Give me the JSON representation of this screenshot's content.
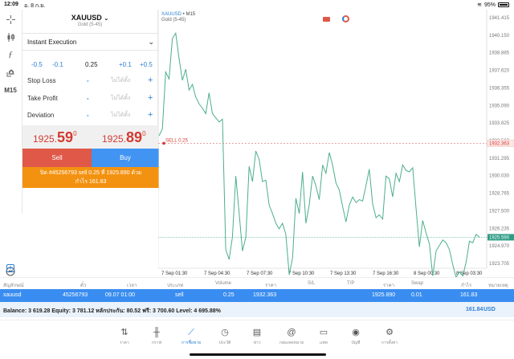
{
  "statusbar": {
    "time": "12:09",
    "date": "อ. 8 ก.ย.",
    "battery": "95%"
  },
  "toolrail": {
    "timeframe": "M15"
  },
  "order": {
    "symbol": "XAUUSD",
    "symbol_desc": "Gold (5-45)",
    "execution": "Instant Execution",
    "volume_steps": [
      "-0.5",
      "-0.1",
      "0.25",
      "+0.1",
      "+0.5"
    ],
    "fields": [
      {
        "label": "Stop Loss",
        "minus": "-",
        "value": "ไม่ได้ตั้ง",
        "plus": "+"
      },
      {
        "label": "Take Profit",
        "minus": "-",
        "value": "ไม่ได้ตั้ง",
        "plus": "+"
      },
      {
        "label": "Deviation",
        "minus": "-",
        "value": "ไม่ได้ตั้ง",
        "plus": "+"
      }
    ],
    "bid": {
      "main": "1925.",
      "big": "59",
      "sup": "0"
    },
    "ask": {
      "main": "1925.",
      "big": "89",
      "sup": "0"
    },
    "sell_label": "Sell",
    "buy_label": "Buy",
    "close_line1": "ปิด #45256793 sell 0.25 ที่ 1925.890 ด้วย",
    "close_line2": "กำไร 161.83"
  },
  "chart": {
    "symbol": "XAUUSD",
    "sep": " • ",
    "timeframe": "M15",
    "desc": "Gold (5-45)",
    "order_line_label": "SELL 0.25",
    "order_price_tag": "1932.363",
    "current_price_tag": "1925.590",
    "line_color": "#4caf8a",
    "order_color": "#d23a30"
  },
  "chart_data": {
    "type": "line",
    "title": "XAUUSD • M15",
    "subtitle": "Gold (5-45)",
    "y_ticks": [
      "1941.415",
      "1940.150",
      "1938.885",
      "1937.620",
      "1936.355",
      "1935.090",
      "1933.825",
      "1932.560",
      "1931.295",
      "1930.030",
      "1928.765",
      "1927.500",
      "1926.235",
      "1924.970",
      "1923.705"
    ],
    "x_ticks": [
      "7 Sep 01:30",
      "7 Sep 04:30",
      "7 Sep 07:30",
      "7 Sep 10:30",
      "7 Sep 13:30",
      "7 Sep 16:30",
      "8 Sep 00:30",
      "8 Sep 03:30"
    ],
    "ylim": [
      1922.9,
      1942.0
    ],
    "series": [
      {
        "name": "XAUUSD close",
        "values": [
          1932.9,
          1933.4,
          1937.5,
          1937.0,
          1939.9,
          1940.3,
          1938.5,
          1936.9,
          1937.7,
          1936.2,
          1936.6,
          1935.7,
          1935.2,
          1934.9,
          1934.5,
          1936.0,
          1934.5,
          1934.2,
          1933.9,
          1934.1,
          1924.7,
          1924.0,
          1925.6,
          1930.0,
          1927.3,
          1924.6,
          1925.6,
          1930.7,
          1929.6,
          1931.8,
          1931.2,
          1929.6,
          1929.7,
          1927.9,
          1927.3,
          1926.6,
          1926.2,
          1926.6,
          1925.8,
          1922.9,
          1924.1,
          1928.4,
          1927.3,
          1930.3,
          1926.6,
          1927.9,
          1930.0,
          1929.3,
          1928.3,
          1930.8,
          1930.2,
          1931.7,
          1930.8,
          1929.5,
          1929.0,
          1927.8,
          1926.7,
          1927.9,
          1928.5,
          1928.1,
          1928.3,
          1928.2,
          1929.3,
          1930.5,
          1928.0,
          1927.0,
          1927.2,
          1926.9,
          1930.0,
          1929.8,
          1928.5,
          1930.2,
          1929.6,
          1930.8,
          1930.4,
          1930.3,
          1930.6,
          1927.7,
          1924.9,
          1926.8,
          1925.9,
          1925.1,
          1922.8,
          1924.6,
          1925.0,
          1925.4,
          1925.2,
          1924.7,
          1923.6,
          1922.7,
          1923.1,
          1922.8,
          1923.8,
          1925.3,
          1925.2,
          1925.8,
          1925.6
        ]
      }
    ],
    "hlines": [
      {
        "label": "SELL 0.25",
        "price": 1932.363
      },
      {
        "label": "current bid",
        "price": 1925.59
      }
    ],
    "grid": false
  },
  "positions": {
    "headers": [
      "สัญลักษณ์",
      "ตั๋ว",
      "เวลา",
      "ประเภท",
      "Volume",
      "ราคา",
      "S/L",
      "T/P",
      "ราคา",
      "Swap",
      "กำไร",
      "หมายเหตุ"
    ],
    "rows": [
      {
        "symbol": "xauusd",
        "ticket": "45256793",
        "time": "09.07 01:00",
        "type": "sell",
        "volume": "0.25",
        "open_price": "1932.363",
        "sl": "",
        "tp": "",
        "price": "1925.890",
        "swap": "0.01",
        "profit": "161.83",
        "comment": ""
      }
    ]
  },
  "balance": {
    "text": "Balance: 3 619.28 Equity: 3 781.12 หลักประกัน: 80.52 ฟรี: 3 700.60 Level: 4 695.88%",
    "total": "161.84",
    "currency": "USD"
  },
  "tabs": [
    {
      "label": "ราคา",
      "icon": "⇅"
    },
    {
      "label": "กราฟ",
      "icon": "╫"
    },
    {
      "label": "การซื้อขาย",
      "icon": "⟋"
    },
    {
      "label": "ประวัติ",
      "icon": "◷"
    },
    {
      "label": "ข่าว",
      "icon": "▤"
    },
    {
      "label": "กล่องจดหมาย",
      "icon": "@"
    },
    {
      "label": "แชท",
      "icon": "▭"
    },
    {
      "label": "บัญชี",
      "icon": "◉"
    },
    {
      "label": "การตั้งค่า",
      "icon": "⚙"
    }
  ]
}
